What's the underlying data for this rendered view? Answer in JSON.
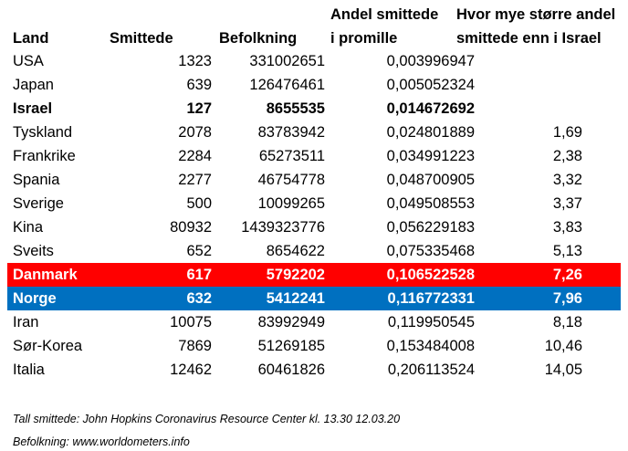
{
  "headers": {
    "land": "Land",
    "smittede": "Smittede",
    "befolkning": "Befolkning",
    "andel_line1": "Andel smittede",
    "andel_line2": "i promille",
    "ratio_line1": "Hvor mye større andel",
    "ratio_line2": "smittede enn i Israel"
  },
  "rows": [
    {
      "land": "USA",
      "smittede": "1323",
      "befolkning": "331002651",
      "andel": "0,003996947",
      "ratio": ""
    },
    {
      "land": "Japan",
      "smittede": "639",
      "befolkning": "126476461",
      "andel": "0,005052324",
      "ratio": ""
    },
    {
      "land": "Israel",
      "smittede": "127",
      "befolkning": "8655535",
      "andel": "0,014672692",
      "ratio": ""
    },
    {
      "land": "Tyskland",
      "smittede": "2078",
      "befolkning": "83783942",
      "andel": "0,024801889",
      "ratio": "1,69"
    },
    {
      "land": "Frankrike",
      "smittede": "2284",
      "befolkning": "65273511",
      "andel": "0,034991223",
      "ratio": "2,38"
    },
    {
      "land": "Spania",
      "smittede": "2277",
      "befolkning": "46754778",
      "andel": "0,048700905",
      "ratio": "3,32"
    },
    {
      "land": "Sverige",
      "smittede": "500",
      "befolkning": "10099265",
      "andel": "0,049508553",
      "ratio": "3,37"
    },
    {
      "land": "Kina",
      "smittede": "80932",
      "befolkning": "1439323776",
      "andel": "0,056229183",
      "ratio": "3,83"
    },
    {
      "land": "Sveits",
      "smittede": "652",
      "befolkning": "8654622",
      "andel": "0,075335468",
      "ratio": "5,13"
    },
    {
      "land": "Danmark",
      "smittede": "617",
      "befolkning": "5792202",
      "andel": "0,106522528",
      "ratio": "7,26"
    },
    {
      "land": "Norge",
      "smittede": "632",
      "befolkning": "5412241",
      "andel": "0,116772331",
      "ratio": "7,96"
    },
    {
      "land": "Iran",
      "smittede": "10075",
      "befolkning": "83992949",
      "andel": "0,119950545",
      "ratio": "8,18"
    },
    {
      "land": "Sør-Korea",
      "smittede": "7869",
      "befolkning": "51269185",
      "andel": "0,153484008",
      "ratio": "10,46"
    },
    {
      "land": "Italia",
      "smittede": "12462",
      "befolkning": "60461826",
      "andel": "0,206113524",
      "ratio": "14,05"
    }
  ],
  "highlight_colors": {
    "Danmark": "#ff0000",
    "Norge": "#0070c0"
  },
  "footnotes": {
    "source1": "Tall smittede: John Hopkins Coronavirus Resource Center kl. 13.30 12.03.20",
    "source2": "Befolkning: www.worldometers.info"
  }
}
